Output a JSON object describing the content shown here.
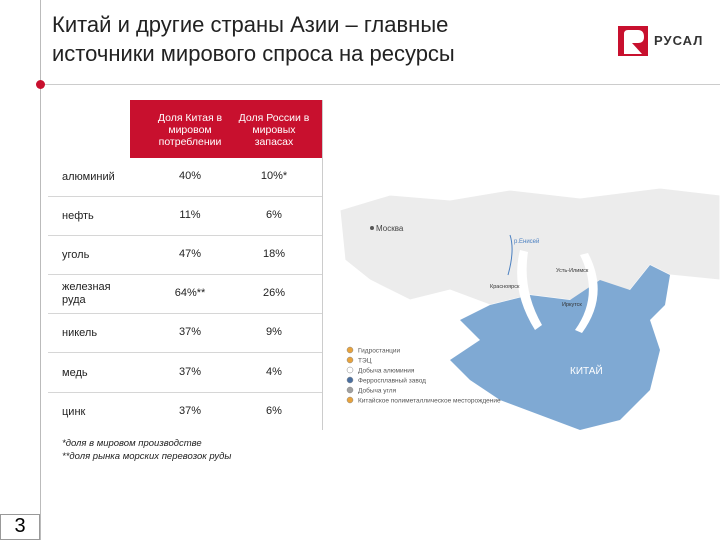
{
  "header": {
    "title_lines": [
      "Китай и другие страны Азии – главные",
      "источники мирового спроса на ресурсы"
    ],
    "logo": "РУСАЛ"
  },
  "table": {
    "columns": [
      "Доля Китая в мировом потреблении",
      "Доля России в мировых запасах"
    ],
    "rows": [
      [
        "алюминий",
        "40%",
        "10%*"
      ],
      [
        "нефть",
        "11%",
        "6%"
      ],
      [
        "уголь",
        "47%",
        "18%"
      ],
      [
        "железная руда",
        "64%**",
        "26%"
      ],
      [
        "никель",
        "37%",
        "9%"
      ],
      [
        "медь",
        "37%",
        "4%"
      ],
      [
        "цинк",
        "37%",
        "6%"
      ]
    ]
  },
  "footnotes": [
    "*доля в мировом производстве",
    "**доля рынка морских перевозок руды"
  ],
  "map": {
    "labels": [
      "Москва",
      "р.Енисей",
      "Красноярск",
      "Иркутск",
      "Усть-Илимск",
      "КИТАЙ"
    ],
    "legend": [
      "Гидростанции",
      "ТЭЦ",
      "Добыча алюминия",
      "Ферросплавный завод",
      "Добыча угля",
      "Китайское полиметаллическое месторождение"
    ]
  },
  "page_number": "3"
}
